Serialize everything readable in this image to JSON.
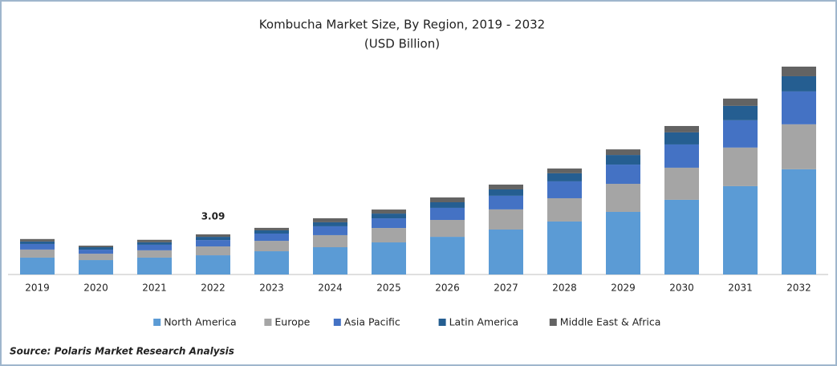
{
  "chart_data": {
    "type": "stacked-bar",
    "title": "Kombucha Market Size, By Region, 2019 - 2032",
    "subtitle": "(USD Billion)",
    "categories": [
      "2019",
      "2020",
      "2021",
      "2022",
      "2023",
      "2024",
      "2025",
      "2026",
      "2027",
      "2028",
      "2029",
      "2030",
      "2031",
      "2032"
    ],
    "series": [
      {
        "name": "North America",
        "color": "#5b9bd5",
        "values": [
          1.3,
          1.11,
          1.3,
          1.48,
          1.79,
          2.1,
          2.47,
          2.9,
          3.46,
          4.08,
          4.82,
          5.75,
          6.8,
          8.1
        ]
      },
      {
        "name": "Europe",
        "color": "#a5a5a5",
        "values": [
          0.62,
          0.49,
          0.56,
          0.68,
          0.8,
          0.93,
          1.11,
          1.3,
          1.55,
          1.79,
          2.16,
          2.47,
          2.97,
          3.46
        ]
      },
      {
        "name": "Asia Pacific",
        "color": "#4472c4",
        "values": [
          0.43,
          0.31,
          0.43,
          0.49,
          0.56,
          0.68,
          0.74,
          0.93,
          1.05,
          1.3,
          1.48,
          1.79,
          2.1,
          2.53
        ]
      },
      {
        "name": "Latin America",
        "color": "#255e91",
        "values": [
          0.19,
          0.19,
          0.19,
          0.25,
          0.25,
          0.31,
          0.37,
          0.43,
          0.49,
          0.62,
          0.74,
          0.93,
          1.11,
          1.17
        ]
      },
      {
        "name": "Middle East & Africa",
        "color": "#636363",
        "values": [
          0.19,
          0.12,
          0.19,
          0.19,
          0.19,
          0.31,
          0.31,
          0.37,
          0.37,
          0.37,
          0.43,
          0.49,
          0.56,
          0.74
        ]
      }
    ],
    "annotations": [
      {
        "x": "2022",
        "value": 3.09
      }
    ],
    "legend": "bottom",
    "source": "Source: Polaris  Market Research Analysis"
  }
}
